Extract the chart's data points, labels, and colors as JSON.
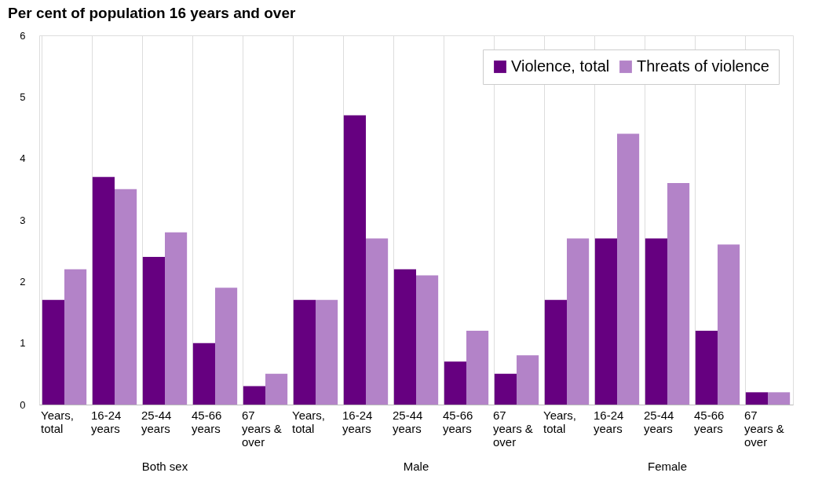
{
  "chart_data": {
    "type": "bar",
    "title": "Per cent of population 16 years and over",
    "categories": [
      "Years, total",
      "16-24 years",
      "25-44 years",
      "45-66 years",
      "67 years & over",
      "Years, total",
      "16-24 years",
      "25-44 years",
      "45-66 years",
      "67 years & over",
      "Years, total",
      "16-24 years",
      "25-44 years",
      "45-66 years",
      "67 years & over"
    ],
    "series": [
      {
        "name": "Violence, total",
        "color": "#660080",
        "values": [
          1.7,
          3.7,
          2.4,
          1.0,
          0.3,
          1.7,
          4.7,
          2.2,
          0.7,
          0.5,
          1.7,
          2.7,
          2.7,
          1.2,
          0.2
        ]
      },
      {
        "name": "Threats of violence",
        "color": "#b383c8",
        "values": [
          2.2,
          3.5,
          2.8,
          1.9,
          0.5,
          1.7,
          2.7,
          2.1,
          1.2,
          0.8,
          2.7,
          4.4,
          3.6,
          2.6,
          0.2
        ]
      }
    ],
    "annotations": [
      "Both sex",
      "Male",
      "Female"
    ],
    "ylim": [
      0,
      6
    ],
    "yticks": [
      0,
      1,
      2,
      3,
      4,
      5,
      6
    ],
    "grid": "x",
    "legend": "top right"
  }
}
